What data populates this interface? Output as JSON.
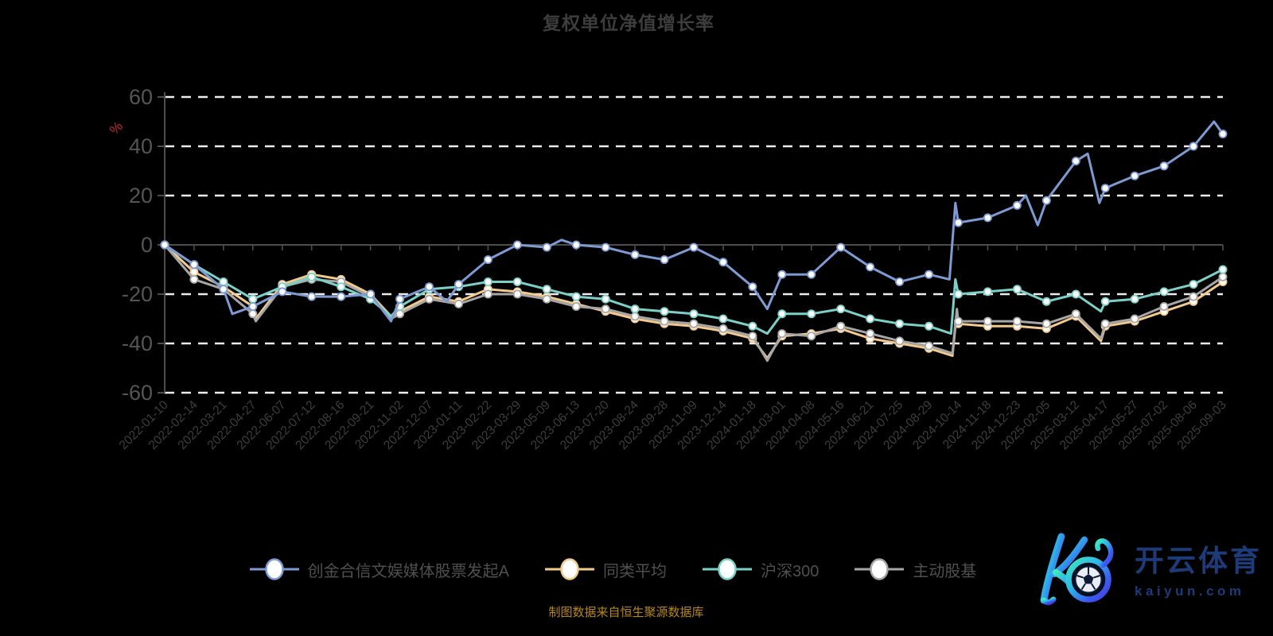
{
  "title": "复权单位净值增长率",
  "y_axis": {
    "unit_label": "%",
    "unit_color": "#c22a2a",
    "ticks": [
      60,
      40,
      20,
      0,
      -20,
      -40,
      -60
    ]
  },
  "footer": {
    "source_note": "制图数据来自恒生聚源数据库"
  },
  "legend": {
    "items": [
      {
        "label": "创金合信文娱媒体股票发起A",
        "color": "#7d9bd2"
      },
      {
        "label": "同类平均",
        "color": "#f3ca8e"
      },
      {
        "label": "沪深300",
        "color": "#7bd0c8"
      },
      {
        "label": "主动股基",
        "color": "#a6a6a6"
      }
    ]
  },
  "logo": {
    "brand_cn": "开云体育",
    "brand_domain": "kaiyun.com"
  },
  "colors": {
    "background": "#000000",
    "grid_dash": "#ececec",
    "axis": "#4d4d4d",
    "y_label": "#555555",
    "x_label": "#3e3e3e",
    "marker_fill": "#ffffff",
    "title": "#3d3d3d",
    "footer": "#b8871c",
    "logo_navy": "#1d3b78"
  },
  "chart_data": {
    "type": "line",
    "unit": "%",
    "ylim": [
      -60,
      60
    ],
    "grid": "horizontal-dashed",
    "legend_position": "bottom",
    "x_label_rotation": 45,
    "categories": [
      "2022-01-10",
      "2022-02-14",
      "2022-03-21",
      "2022-04-27",
      "2022-06-07",
      "2022-07-12",
      "2022-08-16",
      "2022-09-21",
      "2022-11-02",
      "2022-12-07",
      "2023-01-11",
      "2023-02-22",
      "2023-03-29",
      "2023-05-09",
      "2023-06-13",
      "2023-07-20",
      "2023-08-24",
      "2023-09-28",
      "2023-11-09",
      "2023-12-14",
      "2024-01-18",
      "2024-03-01",
      "2024-04-08",
      "2024-05-16",
      "2024-06-21",
      "2024-07-25",
      "2024-08-29",
      "2024-10-14",
      "2024-11-18",
      "2024-12-23",
      "2025-02-05",
      "2025-03-12",
      "2025-04-17",
      "2025-05-27",
      "2025-07-02",
      "2025-08-06",
      "2025-09-03"
    ],
    "series": [
      {
        "name": "创金合信文娱媒体股票发起A",
        "color": "#7d9bd2",
        "values": [
          0,
          -8,
          -18,
          -25,
          -19,
          -21,
          -21,
          -20,
          -22,
          -17,
          -16,
          -6,
          0,
          -1,
          0,
          -1,
          -4,
          -6,
          -1,
          -7,
          -17,
          -12,
          -12,
          -1,
          -9,
          -15,
          -12,
          9,
          11,
          16,
          18,
          34,
          23,
          28,
          32,
          40,
          45
        ],
        "extra_points": [
          [
            2.3,
            -28
          ],
          [
            7.7,
            -31
          ],
          [
            9.6,
            -23
          ],
          [
            13.5,
            2
          ],
          [
            20.5,
            -26
          ],
          [
            26.7,
            -14
          ],
          [
            26.9,
            17
          ],
          [
            29.3,
            20
          ],
          [
            29.7,
            8
          ],
          [
            31.4,
            37
          ],
          [
            31.8,
            17
          ],
          [
            35.7,
            50
          ]
        ]
      },
      {
        "name": "同类平均",
        "color": "#f3ca8e",
        "values": [
          0,
          -11,
          -17,
          -25,
          -16,
          -12,
          -14,
          -20,
          -27,
          -21,
          -23,
          -18,
          -19,
          -21,
          -24,
          -27,
          -30,
          -32,
          -33,
          -35,
          -38,
          -37,
          -36,
          -34,
          -38,
          -40,
          -42,
          -32,
          -33,
          -33,
          -34,
          -29,
          -33,
          -31,
          -27,
          -23,
          -15
        ],
        "extra_points": [
          [
            3.1,
            -30
          ],
          [
            7.7,
            -29
          ],
          [
            20.5,
            -46
          ],
          [
            26.8,
            -45
          ],
          [
            26.95,
            -27
          ],
          [
            31.85,
            -39
          ]
        ]
      },
      {
        "name": "沪深300",
        "color": "#7bd0c8",
        "values": [
          0,
          -8,
          -15,
          -22,
          -17,
          -13,
          -17,
          -22,
          -25,
          -18,
          -17,
          -15,
          -15,
          -18,
          -21,
          -22,
          -26,
          -27,
          -28,
          -30,
          -33,
          -28,
          -28,
          -26,
          -30,
          -32,
          -33,
          -20,
          -19,
          -18,
          -23,
          -20,
          -23,
          -22,
          -19,
          -16,
          -10
        ],
        "extra_points": [
          [
            7.7,
            -29
          ],
          [
            20.5,
            -36
          ],
          [
            26.75,
            -36
          ],
          [
            26.9,
            -14
          ],
          [
            31.85,
            -27
          ]
        ]
      },
      {
        "name": "主动股基",
        "color": "#a6a6a6",
        "values": [
          0,
          -14,
          -18,
          -28,
          -17,
          -14,
          -15,
          -21,
          -28,
          -22,
          -24,
          -20,
          -20,
          -22,
          -25,
          -26,
          -29,
          -31,
          -32,
          -34,
          -37,
          -36,
          -37,
          -33,
          -36,
          -39,
          -41,
          -31,
          -31,
          -31,
          -32,
          -28,
          -32,
          -30,
          -25,
          -21,
          -13
        ],
        "extra_points": [
          [
            3.1,
            -31
          ],
          [
            7.7,
            -30
          ],
          [
            20.5,
            -47
          ],
          [
            26.8,
            -44
          ],
          [
            26.95,
            -26
          ],
          [
            31.85,
            -38
          ]
        ]
      }
    ]
  }
}
